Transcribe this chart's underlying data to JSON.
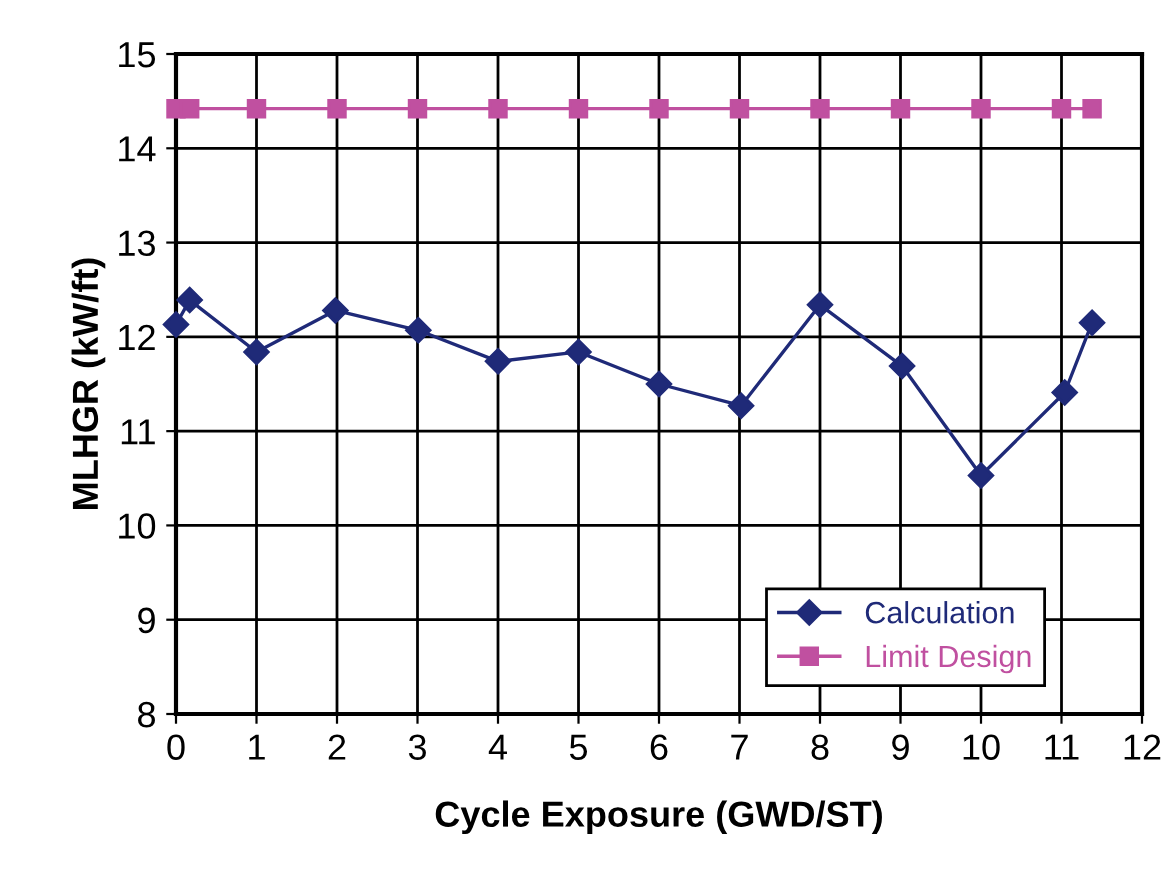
{
  "chart_data": {
    "type": "line",
    "xlabel": "Cycle Exposure (GWD/ST)",
    "ylabel": "MLHGR (kW/ft)",
    "xlim": [
      0,
      12
    ],
    "xticks": [
      0,
      1,
      2,
      3,
      4,
      5,
      6,
      7,
      8,
      9,
      10,
      11,
      12
    ],
    "ylim": [
      8,
      15
    ],
    "yticks": [
      8,
      9,
      10,
      11,
      12,
      13,
      14,
      15
    ],
    "grid": true,
    "legend": "bottom right",
    "series": [
      {
        "name": "Calculation",
        "color": "#1f2a78",
        "marker": "diamond",
        "x": [
          0,
          0.17,
          1.0,
          1.98,
          3.01,
          4.0,
          5.0,
          6.0,
          7.02,
          8.0,
          9.02,
          10.0,
          11.04,
          11.38
        ],
        "values": [
          12.13,
          12.39,
          11.84,
          12.28,
          12.07,
          11.74,
          11.84,
          11.5,
          11.27,
          12.34,
          11.69,
          10.53,
          11.41,
          12.15
        ]
      },
      {
        "name": "Limit Design",
        "color": "#c050a0",
        "marker": "square",
        "x": [
          0,
          0.17,
          1,
          2,
          3,
          4,
          5,
          6,
          7,
          8,
          9,
          10,
          11,
          11.38
        ],
        "values": [
          14.42,
          14.42,
          14.42,
          14.42,
          14.42,
          14.42,
          14.42,
          14.42,
          14.42,
          14.42,
          14.42,
          14.42,
          14.42,
          14.42
        ]
      }
    ]
  }
}
